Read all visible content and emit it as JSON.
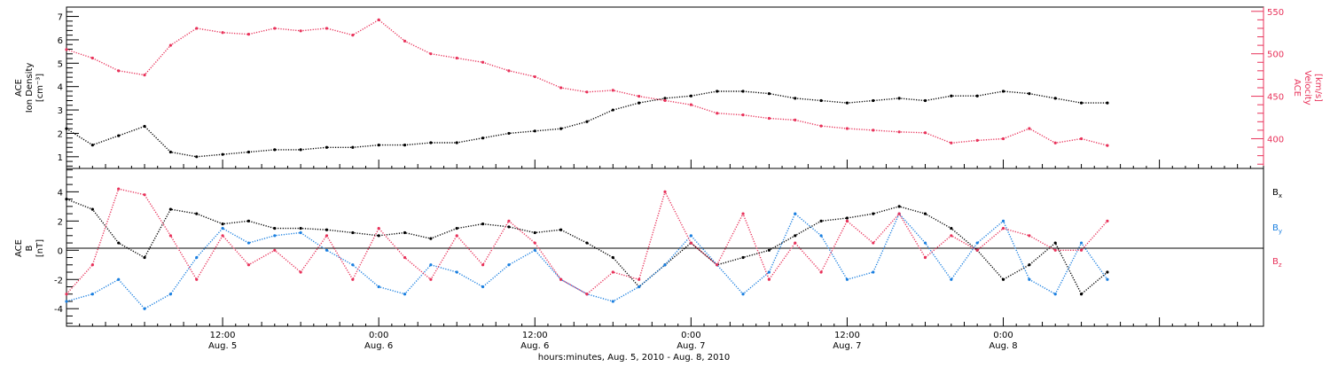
{
  "colors": {
    "black": "#000000",
    "pink": "#e8325a",
    "blue": "#1a7fe0"
  },
  "chart_data": [
    {
      "type": "scatter",
      "title": "",
      "ylabel_lines": [
        "ACE",
        "Ion Density"
      ],
      "yunit": "[cm⁻³]",
      "ylim": [
        0.5,
        7.4
      ],
      "yticks": [
        "1",
        "2",
        "3",
        "4",
        "5",
        "6",
        "7"
      ],
      "y2label_lines": [
        "ACE",
        "Velocity"
      ],
      "y2unit": "[km/s]",
      "y2lim": [
        365,
        555
      ],
      "y2ticks": [
        "400",
        "450",
        "500",
        "550"
      ],
      "series": [
        {
          "key": "density",
          "axis": "left",
          "color": "#000000",
          "x": [
            0,
            2,
            4,
            6,
            8,
            10,
            12,
            14,
            16,
            18,
            20,
            22,
            24,
            26,
            28,
            30,
            32,
            34,
            36,
            38,
            40,
            42,
            44,
            46,
            48,
            50,
            52,
            54,
            56,
            58,
            60,
            62,
            64,
            66,
            68,
            70,
            72,
            74,
            76,
            78,
            80
          ],
          "y": [
            2.2,
            1.5,
            1.9,
            2.3,
            1.2,
            1.0,
            1.1,
            1.2,
            1.3,
            1.3,
            1.4,
            1.4,
            1.5,
            1.5,
            1.6,
            1.6,
            1.8,
            2.0,
            2.1,
            2.2,
            2.5,
            3.0,
            3.3,
            3.5,
            3.6,
            3.8,
            3.8,
            3.7,
            3.5,
            3.4,
            3.3,
            3.4,
            3.5,
            3.4,
            3.6,
            3.6,
            3.8,
            3.7,
            3.5,
            3.3,
            3.3
          ]
        },
        {
          "key": "velocity",
          "axis": "right",
          "color": "#e8325a",
          "x": [
            0,
            2,
            4,
            6,
            8,
            10,
            12,
            14,
            16,
            18,
            20,
            22,
            24,
            26,
            28,
            30,
            32,
            34,
            36,
            38,
            40,
            42,
            44,
            46,
            48,
            50,
            52,
            54,
            56,
            58,
            60,
            62,
            64,
            66,
            68,
            70,
            72,
            74,
            76,
            78,
            80
          ],
          "y": [
            505,
            495,
            480,
            475,
            510,
            530,
            525,
            523,
            530,
            527,
            530,
            522,
            540,
            515,
            500,
            495,
            490,
            480,
            473,
            460,
            455,
            457,
            450,
            445,
            440,
            430,
            428,
            424,
            422,
            415,
            412,
            410,
            408,
            407,
            395,
            398,
            400,
            412,
            395,
            400,
            392
          ]
        }
      ],
      "xlim": [
        0,
        92
      ]
    },
    {
      "type": "scatter",
      "title": "",
      "ylabel_lines": [
        "ACE",
        "B"
      ],
      "yunit": "[nT]",
      "ylim": [
        -5.2,
        5.6
      ],
      "yticks": [
        "-4",
        "-2",
        "0",
        "2",
        "4"
      ],
      "legend": [
        "Bx",
        "By",
        "Bz"
      ],
      "series": [
        {
          "name": "Bx",
          "color": "#000000",
          "x": [
            0,
            2,
            4,
            6,
            8,
            10,
            12,
            14,
            16,
            18,
            20,
            22,
            24,
            26,
            28,
            30,
            32,
            34,
            36,
            38,
            40,
            42,
            44,
            46,
            48,
            50,
            52,
            54,
            56,
            58,
            60,
            62,
            64,
            66,
            68,
            70,
            72,
            74,
            76,
            78,
            80
          ],
          "y": [
            3.5,
            2.8,
            0.5,
            -0.5,
            2.8,
            2.5,
            1.8,
            2.0,
            1.5,
            1.5,
            1.4,
            1.2,
            1.0,
            1.2,
            0.8,
            1.5,
            1.8,
            1.6,
            1.2,
            1.4,
            0.5,
            -0.5,
            -2.5,
            -1.0,
            0.5,
            -1.0,
            -0.5,
            0.0,
            1.0,
            2.0,
            2.2,
            2.5,
            3.0,
            2.5,
            1.5,
            0.0,
            -2.0,
            -1.0,
            0.5,
            -3.0,
            -1.5
          ]
        },
        {
          "name": "By",
          "color": "#1a7fe0",
          "x": [
            0,
            2,
            4,
            6,
            8,
            10,
            12,
            14,
            16,
            18,
            20,
            22,
            24,
            26,
            28,
            30,
            32,
            34,
            36,
            38,
            40,
            42,
            44,
            46,
            48,
            50,
            52,
            54,
            56,
            58,
            60,
            62,
            64,
            66,
            68,
            70,
            72,
            74,
            76,
            78,
            80
          ],
          "y": [
            -3.5,
            -3.0,
            -2.0,
            -4.0,
            -3.0,
            -0.5,
            1.5,
            0.5,
            1.0,
            1.2,
            0.0,
            -1.0,
            -2.5,
            -3.0,
            -1.0,
            -1.5,
            -2.5,
            -1.0,
            0.0,
            -2.0,
            -3.0,
            -3.5,
            -2.5,
            -1.0,
            1.0,
            -1.0,
            -3.0,
            -1.5,
            2.5,
            1.0,
            -2.0,
            -1.5,
            2.5,
            0.5,
            -2.0,
            0.5,
            2.0,
            -2.0,
            -3.0,
            0.5,
            -2.0
          ]
        },
        {
          "name": "Bz",
          "color": "#e8325a",
          "x": [
            0,
            2,
            4,
            6,
            8,
            10,
            12,
            14,
            16,
            18,
            20,
            22,
            24,
            26,
            28,
            30,
            32,
            34,
            36,
            38,
            40,
            42,
            44,
            46,
            48,
            50,
            52,
            54,
            56,
            58,
            60,
            62,
            64,
            66,
            68,
            70,
            72,
            74,
            76,
            78,
            80
          ],
          "y": [
            -3.0,
            -1.0,
            4.2,
            3.8,
            1.0,
            -2.0,
            1.0,
            -1.0,
            0.0,
            -1.5,
            1.0,
            -2.0,
            1.5,
            -0.5,
            -2.0,
            1.0,
            -1.0,
            2.0,
            0.5,
            -2.0,
            -3.0,
            -1.5,
            -2.0,
            4.0,
            0.5,
            -1.0,
            2.5,
            -2.0,
            0.5,
            -1.5,
            2.0,
            0.5,
            2.5,
            -0.5,
            1.0,
            0.0,
            1.5,
            1.0,
            0.0,
            0.0,
            2.0
          ]
        }
      ],
      "xlim": [
        0,
        92
      ]
    }
  ],
  "xaxis": {
    "ticks": [
      {
        "x": 12,
        "time": "12:00",
        "date": "Aug. 5"
      },
      {
        "x": 24,
        "time": "0:00",
        "date": "Aug. 6"
      },
      {
        "x": 36,
        "time": "12:00",
        "date": "Aug. 6"
      },
      {
        "x": 48,
        "time": "0:00",
        "date": "Aug. 7"
      },
      {
        "x": 60,
        "time": "12:00",
        "date": "Aug. 7"
      },
      {
        "x": 72,
        "time": "0:00",
        "date": "Aug. 8"
      }
    ],
    "label": "hours:minutes, Aug.  5, 2010 - Aug.  8, 2010"
  }
}
